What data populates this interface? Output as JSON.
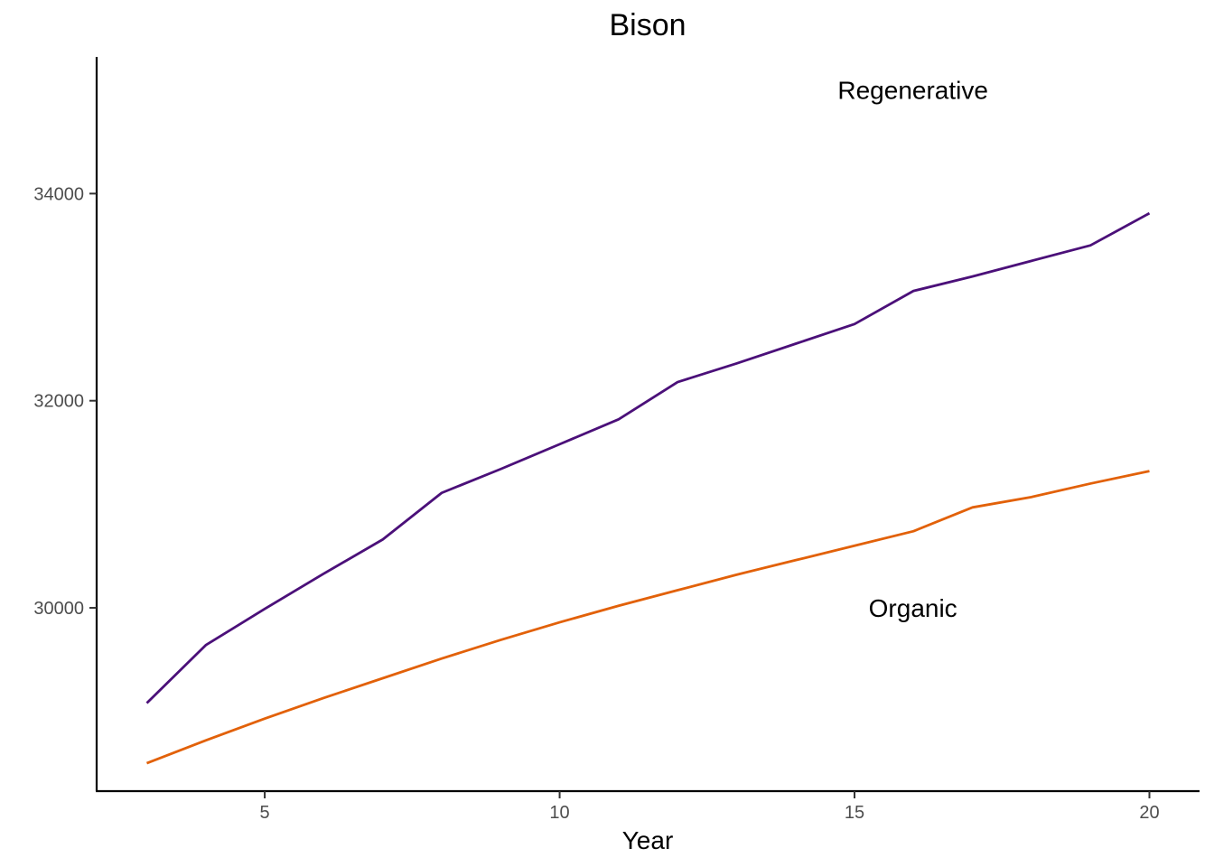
{
  "chart_data": {
    "type": "line",
    "title": "Bison",
    "xlabel": "Year",
    "ylabel": "",
    "xlim": [
      2.15,
      20.85
    ],
    "ylim": [
      28230,
      35320
    ],
    "x_ticks": [
      5,
      10,
      15,
      20
    ],
    "y_ticks": [
      30000,
      32000,
      34000
    ],
    "grid": false,
    "legend": "none",
    "x": [
      3,
      4,
      5,
      6,
      7,
      8,
      9,
      10,
      11,
      12,
      13,
      14,
      15,
      16,
      17,
      18,
      19,
      20
    ],
    "series": [
      {
        "name": "Regenerative",
        "color": "#4b1079",
        "values": [
          29080,
          29640,
          29990,
          30330,
          30660,
          31110,
          31340,
          31580,
          31820,
          32180,
          32360,
          32550,
          32740,
          33060,
          33200,
          33350,
          33500,
          33810
        ]
      },
      {
        "name": "Organic",
        "color": "#e26109",
        "values": [
          28500,
          28720,
          28930,
          29130,
          29320,
          29510,
          29690,
          29860,
          30020,
          30170,
          30320,
          30460,
          30600,
          30740,
          30970,
          31070,
          31200,
          31320
        ]
      }
    ],
    "annotations": [
      {
        "text": "Regenerative",
        "x": 15.99,
        "y": 35000
      },
      {
        "text": "Organic",
        "x": 15.99,
        "y": 30000
      }
    ]
  }
}
